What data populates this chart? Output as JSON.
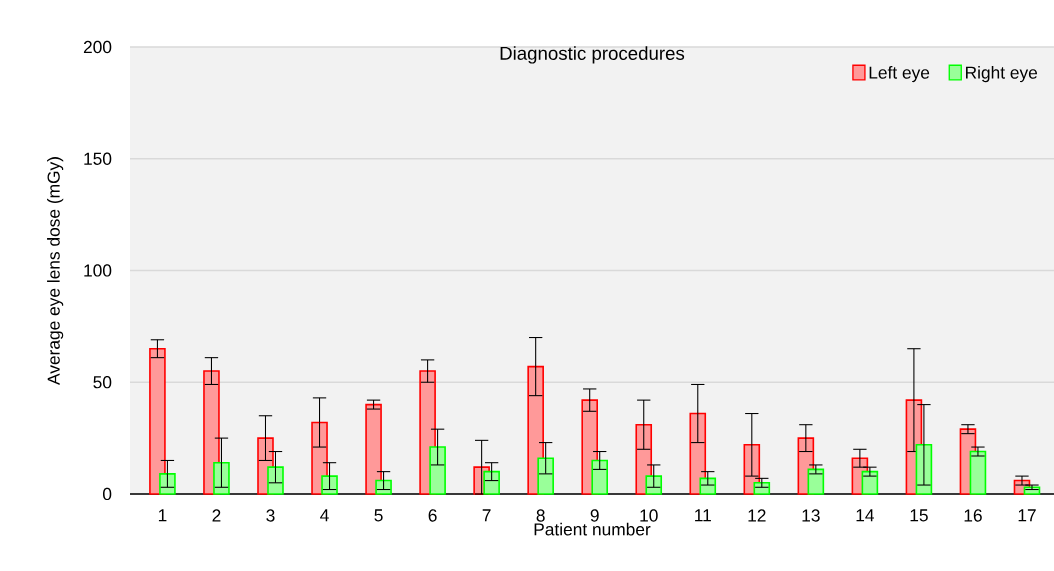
{
  "chart_data": {
    "type": "bar",
    "title": "Diagnostic procedures",
    "xlabel": "Patient number",
    "ylabel": "Average eye lens dose (mGy)",
    "categories": [
      "1",
      "2",
      "3",
      "4",
      "5",
      "6",
      "7",
      "8",
      "9",
      "10",
      "11",
      "12",
      "13",
      "14",
      "15",
      "16",
      "17"
    ],
    "series": [
      {
        "name": "Left eye",
        "color": "#ff9999",
        "values": [
          65,
          55,
          25,
          32,
          40,
          55,
          12,
          57,
          42,
          31,
          36,
          22,
          25,
          16,
          42,
          29,
          6
        ],
        "errors": [
          4,
          6,
          10,
          11,
          2,
          5,
          12,
          13,
          5,
          11,
          13,
          14,
          6,
          4,
          23,
          2,
          2
        ]
      },
      {
        "name": "Right eye",
        "color": "#99ff99",
        "values": [
          9,
          14,
          12,
          8,
          6,
          21,
          10,
          16,
          15,
          8,
          7,
          5,
          11,
          10,
          22,
          19,
          3
        ],
        "errors": [
          6,
          11,
          7,
          6,
          4,
          8,
          4,
          7,
          4,
          5,
          3,
          2,
          2,
          2,
          18,
          2,
          1
        ]
      }
    ],
    "ylim": [
      0,
      200
    ],
    "yticks": [
      0,
      50,
      100,
      150,
      200
    ],
    "grid": "y",
    "legend": "top right"
  }
}
